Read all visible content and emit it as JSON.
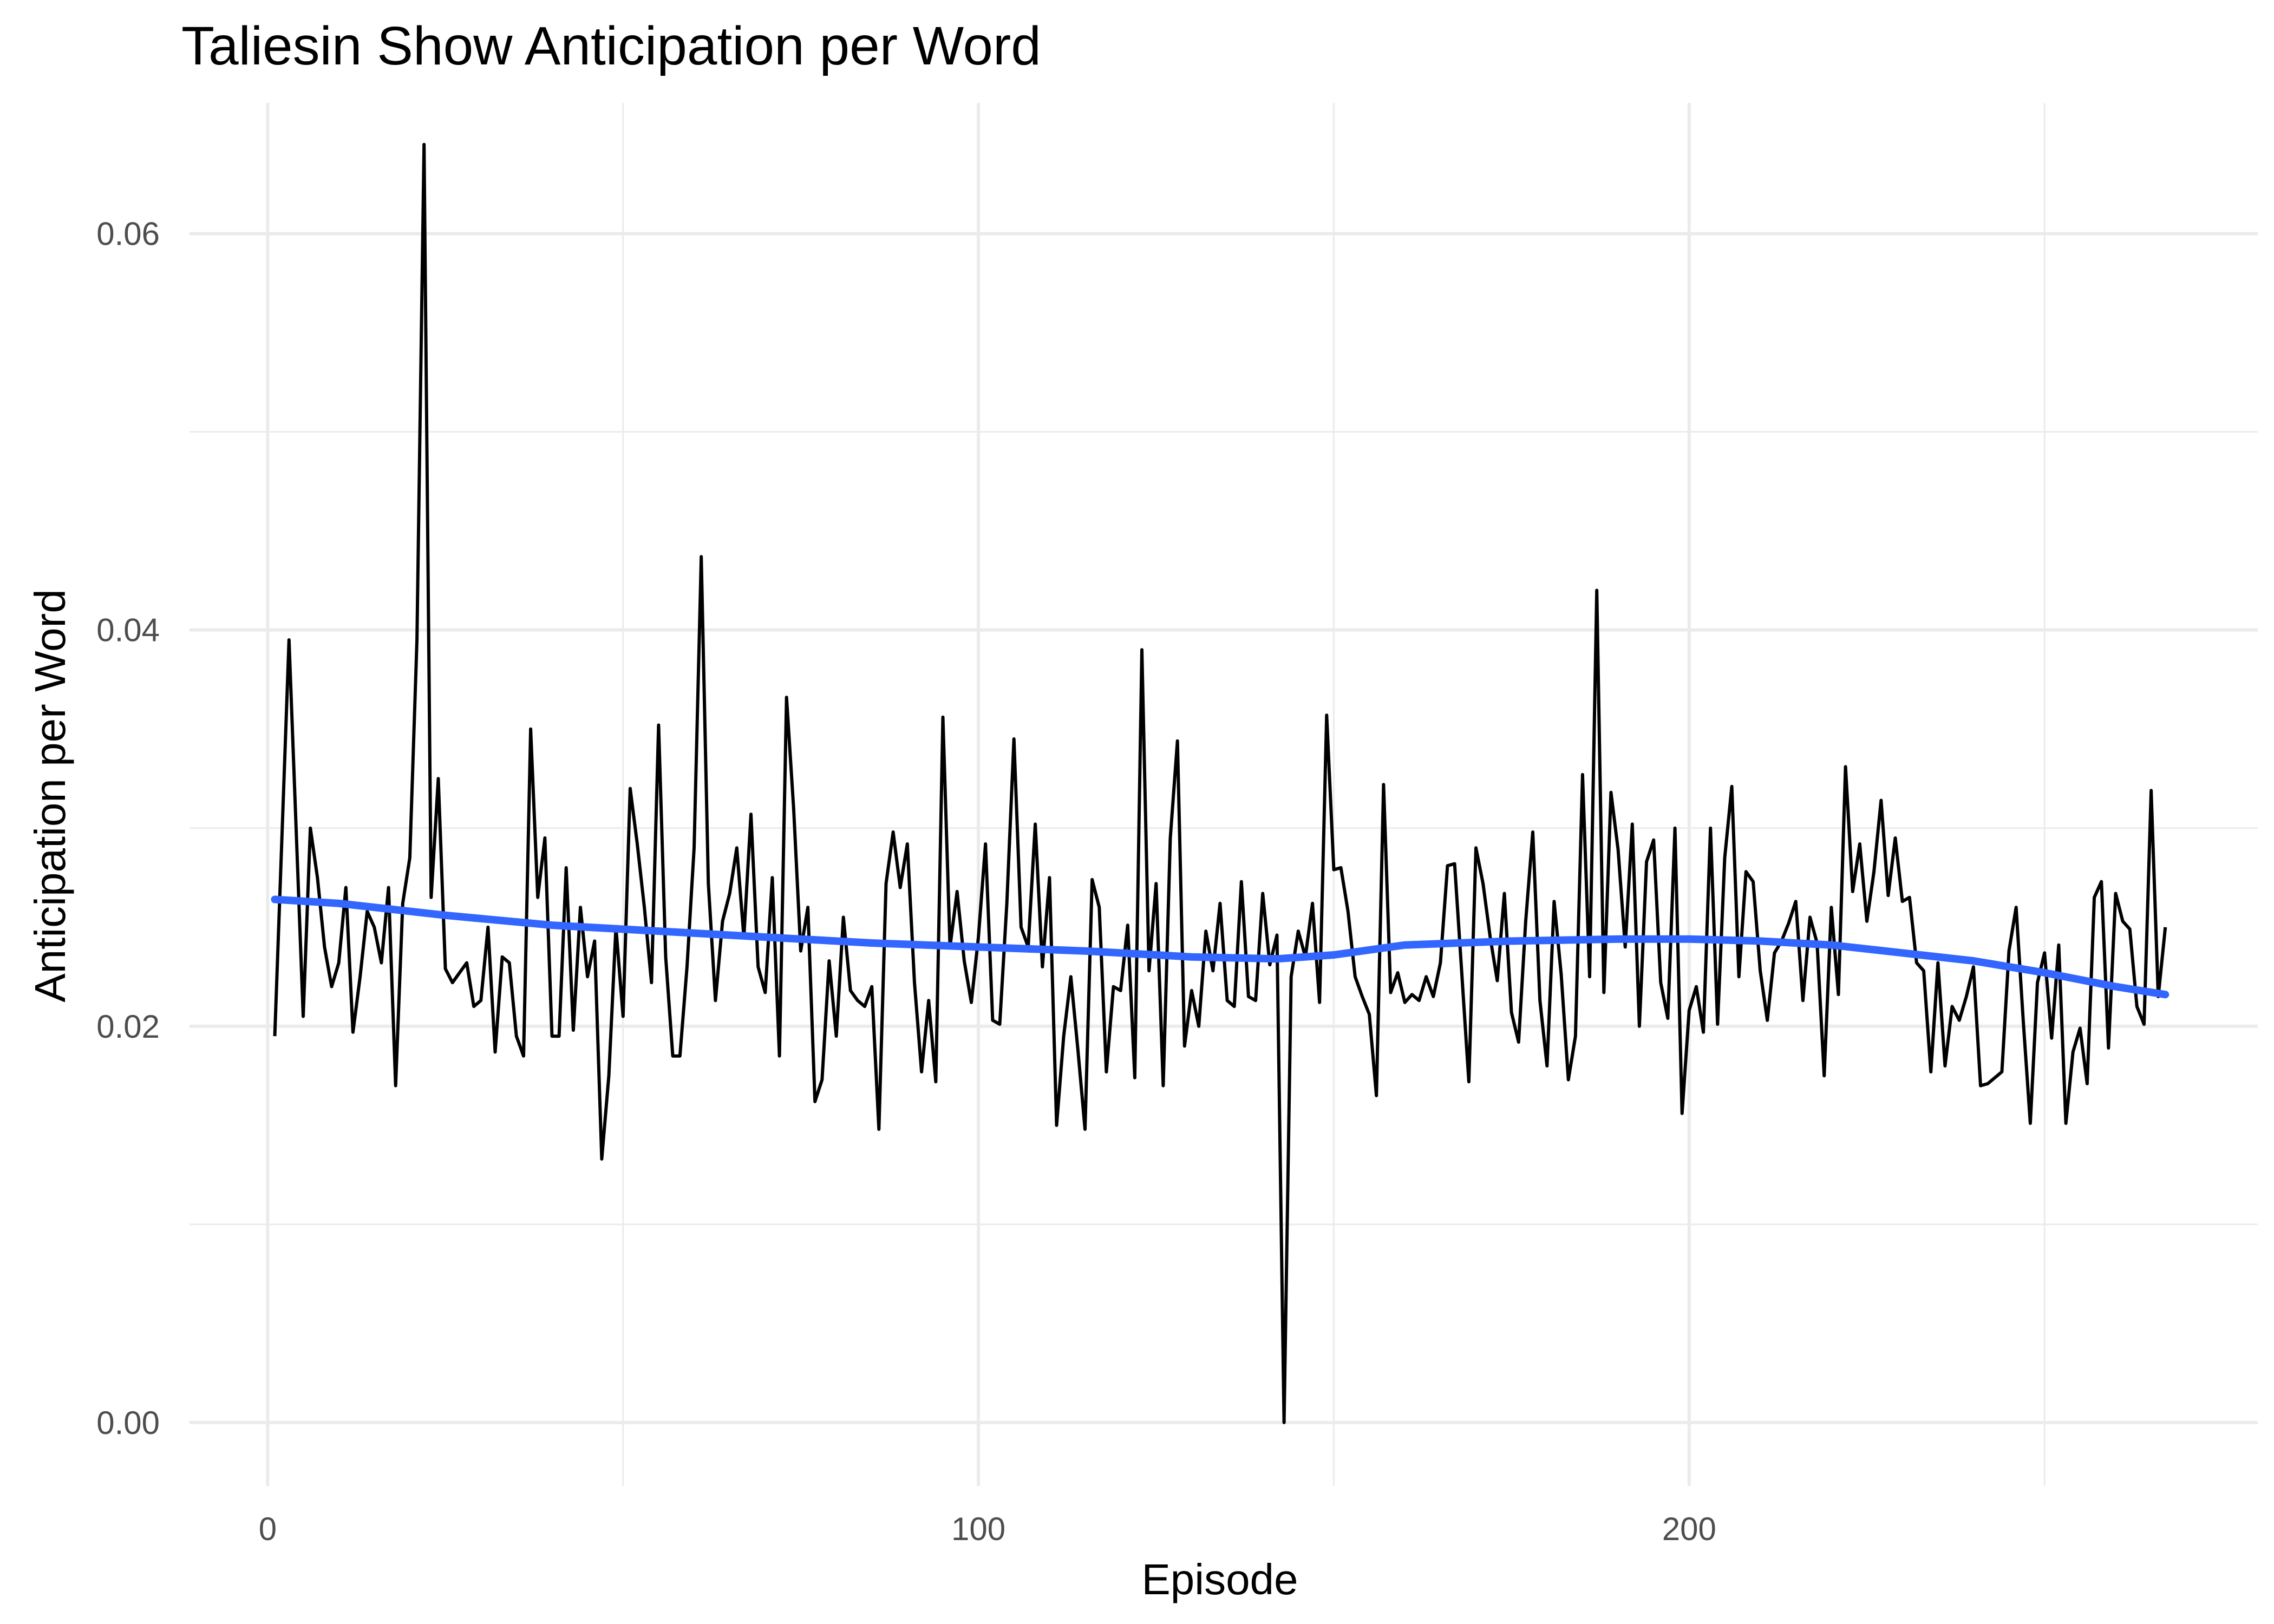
{
  "chart_data": {
    "type": "line",
    "title": "Taliesin Show Anticipation per Word",
    "xlabel": "Episode",
    "ylabel": "Anticipation per Word",
    "xlim": [
      -11,
      280
    ],
    "ylim": [
      -0.0032,
      0.0666
    ],
    "x_ticks": [
      0,
      100,
      200
    ],
    "x_tick_labels": [
      "0",
      "100",
      "200"
    ],
    "x_minor_ticks": [
      50,
      150,
      250
    ],
    "y_ticks": [
      0.0,
      0.02,
      0.04,
      0.06
    ],
    "y_tick_labels": [
      "0.00",
      "0.02",
      "0.04",
      "0.06"
    ],
    "y_minor_ticks": [
      0.01,
      0.03,
      0.05
    ],
    "grid": true,
    "legend": "none",
    "colors": {
      "series": "#000000",
      "trend": "#3366ff",
      "grid": "#ebebeb",
      "tick": "#4d4d4d"
    },
    "series": [
      {
        "x": [
          1,
          3,
          5,
          6,
          7,
          8,
          9,
          10,
          11,
          12,
          13,
          14,
          15,
          16,
          17,
          18,
          19,
          20,
          21,
          22,
          23,
          24,
          25,
          26,
          27,
          28,
          29,
          30,
          31,
          32,
          33,
          34,
          35,
          36,
          37,
          38,
          39,
          40,
          41,
          42,
          43,
          44,
          45,
          46,
          47,
          48,
          49,
          50,
          51,
          52,
          53,
          54,
          55,
          56,
          57,
          58,
          59,
          60,
          61,
          62,
          63,
          64,
          65,
          66,
          67,
          68,
          69,
          70,
          71,
          72,
          73,
          74,
          75,
          76,
          77,
          78,
          79,
          80,
          81,
          82,
          83,
          84,
          85,
          86,
          87,
          88,
          89,
          90,
          91,
          92,
          93,
          94,
          95,
          96,
          97,
          98,
          99,
          100,
          101,
          102,
          103,
          104,
          105,
          106,
          107,
          108,
          109,
          110,
          111,
          112,
          113,
          114,
          115,
          116,
          117,
          118,
          119,
          120,
          121,
          122,
          123,
          124,
          125,
          126,
          127,
          128,
          129,
          130,
          131,
          132,
          133,
          134,
          135,
          136,
          137,
          138,
          139,
          140,
          141,
          142,
          143,
          144,
          145,
          146,
          147,
          148,
          149,
          150,
          151,
          152,
          153,
          154,
          155,
          156,
          157,
          158,
          159,
          160,
          161,
          162,
          163,
          164,
          165,
          166,
          167,
          168,
          169,
          170,
          171,
          172,
          173,
          174,
          175,
          176,
          177,
          178,
          179,
          180,
          181,
          182,
          183,
          184,
          185,
          186,
          187,
          188,
          189,
          190,
          191,
          192,
          193,
          194,
          195,
          196,
          197,
          198,
          199,
          200,
          201,
          202,
          203,
          204,
          205,
          206,
          207,
          208,
          209,
          210,
          211,
          212,
          213,
          214,
          215,
          216,
          217,
          218,
          219,
          220,
          221,
          222,
          223,
          224,
          225,
          226,
          227,
          228,
          229,
          230,
          231,
          232,
          233,
          234,
          235,
          236,
          237,
          238,
          239,
          240,
          241,
          242,
          243,
          244,
          245,
          246,
          247,
          248,
          249,
          250,
          251,
          252,
          253,
          254,
          255,
          256,
          257,
          258,
          259,
          260,
          261,
          262,
          263,
          264,
          265,
          266,
          267
        ],
        "y": [
          0.0195,
          0.0395,
          0.0205,
          0.03,
          0.0275,
          0.024,
          0.022,
          0.0232,
          0.027,
          0.0197,
          0.0225,
          0.0258,
          0.025,
          0.0232,
          0.027,
          0.017,
          0.0262,
          0.0285,
          0.0395,
          0.0645,
          0.0265,
          0.0325,
          0.0229,
          0.0222,
          0.0227,
          0.0232,
          0.021,
          0.0213,
          0.025,
          0.0187,
          0.0235,
          0.0232,
          0.0195,
          0.0185,
          0.035,
          0.0265,
          0.0295,
          0.0195,
          0.0195,
          0.028,
          0.0198,
          0.026,
          0.0225,
          0.0243,
          0.0133,
          0.0175,
          0.025,
          0.0205,
          0.032,
          0.0292,
          0.026,
          0.0222,
          0.0352,
          0.0235,
          0.0185,
          0.0185,
          0.023,
          0.029,
          0.0437,
          0.0272,
          0.0213,
          0.0253,
          0.0267,
          0.029,
          0.0245,
          0.0307,
          0.023,
          0.0217,
          0.0275,
          0.0185,
          0.0366,
          0.031,
          0.0238,
          0.026,
          0.0162,
          0.0173,
          0.0233,
          0.0195,
          0.0255,
          0.0218,
          0.0213,
          0.021,
          0.022,
          0.0148,
          0.0272,
          0.0298,
          0.027,
          0.0292,
          0.0222,
          0.0177,
          0.0213,
          0.0172,
          0.0356,
          0.024,
          0.0268,
          0.0233,
          0.0212,
          0.0245,
          0.0292,
          0.0203,
          0.0201,
          0.0262,
          0.0345,
          0.025,
          0.024,
          0.0302,
          0.023,
          0.0275,
          0.015,
          0.0195,
          0.0225,
          0.0188,
          0.0148,
          0.0274,
          0.026,
          0.0177,
          0.022,
          0.0218,
          0.0251,
          0.0174,
          0.039,
          0.0228,
          0.0272,
          0.017,
          0.0295,
          0.0344,
          0.019,
          0.0218,
          0.02,
          0.0248,
          0.0228,
          0.0262,
          0.0213,
          0.021,
          0.0273,
          0.0215,
          0.0213,
          0.0267,
          0.0231,
          0.0246,
          0.0,
          0.0225,
          0.0248,
          0.0235,
          0.0262,
          0.0212,
          0.0357,
          0.0279,
          0.028,
          0.0258,
          0.0225,
          0.0215,
          0.0206,
          0.0165,
          0.0322,
          0.0217,
          0.0227,
          0.0212,
          0.0216,
          0.0213,
          0.0225,
          0.0215,
          0.0232,
          0.0281,
          0.0282,
          0.0227,
          0.0172,
          0.029,
          0.0272,
          0.0245,
          0.0223,
          0.0267,
          0.0207,
          0.0192,
          0.0253,
          0.0298,
          0.0213,
          0.018,
          0.0263,
          0.0226,
          0.0173,
          0.0195,
          0.0327,
          0.0225,
          0.042,
          0.0217,
          0.0318,
          0.0289,
          0.024,
          0.0302,
          0.02,
          0.0283,
          0.0294,
          0.0222,
          0.0204,
          0.03,
          0.0156,
          0.0208,
          0.022,
          0.0197,
          0.03,
          0.0201,
          0.0285,
          0.0321,
          0.0225,
          0.0278,
          0.0273,
          0.0228,
          0.0203,
          0.0237,
          0.0243,
          0.0252,
          0.0263,
          0.0213,
          0.0255,
          0.0242,
          0.0175,
          0.026,
          0.0216,
          0.0331,
          0.0268,
          0.0292,
          0.0253,
          0.0278,
          0.0314,
          0.0266,
          0.0295,
          0.0263,
          0.0265,
          0.0232,
          0.0228,
          0.0177,
          0.0232,
          0.018,
          0.021,
          0.0203,
          0.0215,
          0.023,
          0.017,
          0.0171,
          0.0174,
          0.0177,
          0.0238,
          0.026,
          0.0203,
          0.0151,
          0.0222,
          0.0237,
          0.0194,
          0.0241,
          0.0151,
          0.0187,
          0.0199,
          0.0171,
          0.0265,
          0.0273,
          0.0189,
          0.0267,
          0.0253,
          0.0249,
          0.021,
          0.0201,
          0.0319,
          0.0215,
          0.025
        ]
      },
      {
        "x": [
          1,
          10,
          25,
          40,
          55,
          70,
          85,
          100,
          115,
          130,
          142,
          150,
          160,
          175,
          190,
          200,
          210,
          220,
          230,
          240,
          250,
          260,
          267
        ],
        "y": [
          0.0264,
          0.0262,
          0.0256,
          0.0251,
          0.0248,
          0.0245,
          0.0242,
          0.024,
          0.0238,
          0.0235,
          0.0234,
          0.0236,
          0.0241,
          0.0243,
          0.0244,
          0.0244,
          0.0243,
          0.0241,
          0.0237,
          0.0233,
          0.0227,
          0.022,
          0.0216
        ]
      }
    ]
  }
}
